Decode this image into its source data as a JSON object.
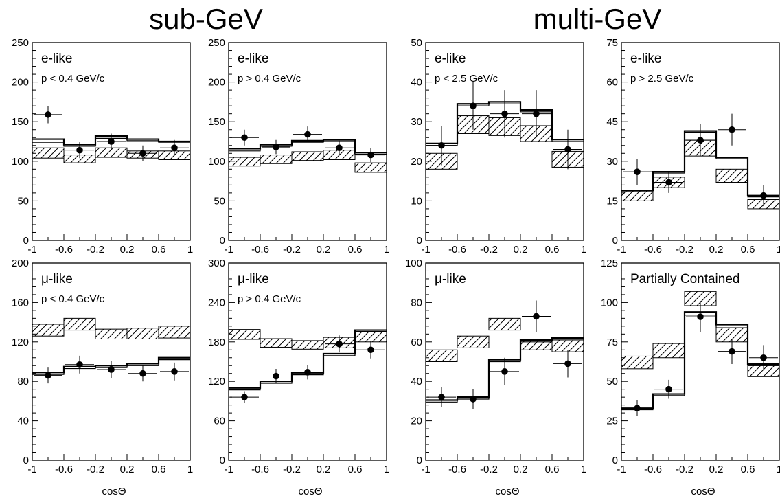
{
  "headers": {
    "left": "sub-GeV",
    "right": "multi-GeV"
  },
  "colors": {
    "ink": "#000000",
    "background": "#ffffff"
  },
  "chart_data": [
    {
      "type": "histogram",
      "panel": "sub-GeV e-like",
      "title": "e-like",
      "subtitle": "p < 0.4 GeV/c",
      "xlabel": "",
      "xlim": [
        -1,
        1
      ],
      "xticks": [
        "-1",
        "-0.6",
        "-0.2",
        "0.2",
        "0.6",
        "1"
      ],
      "ylim": [
        0,
        250
      ],
      "yticks": [
        "0",
        "50",
        "100",
        "150",
        "200",
        "250"
      ],
      "bin_edges": [
        -1,
        -0.6,
        -0.2,
        0.2,
        0.6,
        1
      ],
      "series": [
        {
          "kind": "prediction-line",
          "values": [
            128,
            121,
            132,
            128,
            125
          ]
        },
        {
          "kind": "prediction-line",
          "values": [
            124,
            119,
            129,
            126,
            124
          ]
        },
        {
          "kind": "data-points",
          "values": [
            159,
            114,
            125,
            110,
            117
          ],
          "errors": [
            11,
            10,
            10,
            10,
            10
          ]
        },
        {
          "kind": "hatched-band",
          "low": [
            104,
            98,
            105,
            104,
            102
          ],
          "high": [
            117,
            108,
            117,
            113,
            113
          ]
        }
      ]
    },
    {
      "type": "histogram",
      "panel": "sub-GeV e-like",
      "title": "e-like",
      "subtitle": "p > 0.4 GeV/c",
      "xlabel": "",
      "xlim": [
        -1,
        1
      ],
      "xticks": [
        "-1",
        "-0.6",
        "-0.2",
        "0.2",
        "0.6",
        "1"
      ],
      "ylim": [
        0,
        250
      ],
      "yticks": [
        "0",
        "50",
        "100",
        "150",
        "200",
        "250"
      ],
      "bin_edges": [
        -1,
        -0.6,
        -0.2,
        0.2,
        0.6,
        1
      ],
      "series": [
        {
          "kind": "prediction-line",
          "values": [
            116,
            121,
            126,
            127,
            111
          ]
        },
        {
          "kind": "prediction-line",
          "values": [
            113,
            119,
            124,
            125,
            109
          ]
        },
        {
          "kind": "data-points",
          "values": [
            130,
            118,
            134,
            117,
            108
          ],
          "errors": [
            10,
            9,
            10,
            9,
            9
          ]
        },
        {
          "kind": "hatched-band",
          "low": [
            94,
            97,
            101,
            102,
            86
          ],
          "high": [
            105,
            108,
            112,
            114,
            98
          ]
        }
      ]
    },
    {
      "type": "histogram",
      "panel": "multi-GeV e-like",
      "title": "e-like",
      "subtitle": "p < 2.5 GeV/c",
      "xlabel": "",
      "xlim": [
        -1,
        1
      ],
      "xticks": [
        "-1",
        "-0.6",
        "-0.2",
        "0.2",
        "0.6",
        "1"
      ],
      "ylim": [
        0,
        50
      ],
      "yticks": [
        "0",
        "10",
        "20",
        "30",
        "40",
        "50"
      ],
      "bin_edges": [
        -1,
        -0.6,
        -0.2,
        0.2,
        0.6,
        1
      ],
      "series": [
        {
          "kind": "prediction-line",
          "values": [
            24.5,
            34.5,
            35,
            33,
            25.5
          ]
        },
        {
          "kind": "prediction-line",
          "values": [
            24,
            34,
            34.5,
            32.5,
            25
          ]
        },
        {
          "kind": "data-points",
          "values": [
            24,
            34,
            32,
            32,
            23
          ],
          "errors": [
            5,
            6,
            6,
            6,
            5
          ]
        },
        {
          "kind": "hatched-band",
          "low": [
            18,
            27,
            26.5,
            25,
            18.5
          ],
          "high": [
            22,
            31.5,
            31,
            29,
            22.5
          ]
        }
      ]
    },
    {
      "type": "histogram",
      "panel": "multi-GeV e-like",
      "title": "e-like",
      "subtitle": "p > 2.5 GeV/c",
      "xlabel": "",
      "xlim": [
        -1,
        1
      ],
      "xticks": [
        "-1",
        "-0.6",
        "-0.2",
        "0.2",
        "0.6",
        "1"
      ],
      "ylim": [
        0,
        75
      ],
      "yticks": [
        "0",
        "15",
        "30",
        "45",
        "60",
        "75"
      ],
      "bin_edges": [
        -1,
        -0.6,
        -0.2,
        0.2,
        0.6,
        1
      ],
      "series": [
        {
          "kind": "prediction-line",
          "values": [
            19,
            26,
            41.5,
            31.5,
            17
          ]
        },
        {
          "kind": "prediction-line",
          "values": [
            18.5,
            25.5,
            41,
            31,
            16.5
          ]
        },
        {
          "kind": "data-points",
          "values": [
            26,
            22,
            38,
            42,
            17
          ],
          "errors": [
            5,
            4,
            6,
            6,
            4
          ]
        },
        {
          "kind": "hatched-band",
          "low": [
            15,
            20,
            32,
            22,
            12
          ],
          "high": [
            19,
            24,
            38,
            27,
            15.5
          ]
        }
      ]
    },
    {
      "type": "histogram",
      "panel": "sub-GeV mu-like",
      "title": "μ-like",
      "subtitle": "p < 0.4 GeV/c",
      "xlabel": "cosΘ",
      "xlim": [
        -1,
        1
      ],
      "xticks": [
        "-1",
        "-0.6",
        "-0.2",
        "0.2",
        "0.6",
        "1"
      ],
      "ylim": [
        0,
        200
      ],
      "yticks": [
        "0",
        "40",
        "80",
        "120",
        "160",
        "200"
      ],
      "bin_edges": [
        -1,
        -0.6,
        -0.2,
        0.2,
        0.6,
        1
      ],
      "series": [
        {
          "kind": "prediction-line",
          "values": [
            89,
            95,
            96,
            98,
            104
          ]
        },
        {
          "kind": "prediction-line",
          "values": [
            87,
            93,
            94,
            96,
            102
          ]
        },
        {
          "kind": "data-points",
          "values": [
            86,
            97,
            92,
            88,
            90
          ],
          "errors": [
            8,
            9,
            9,
            8,
            9
          ]
        },
        {
          "kind": "hatched-band",
          "low": [
            126,
            132,
            123,
            123,
            124
          ],
          "high": [
            138,
            144,
            133,
            134,
            136
          ]
        }
      ]
    },
    {
      "type": "histogram",
      "panel": "sub-GeV mu-like",
      "title": "μ-like",
      "subtitle": "p > 0.4 GeV/c",
      "xlabel": "cosΘ",
      "xlim": [
        -1,
        1
      ],
      "xticks": [
        "-1",
        "-0.6",
        "-0.2",
        "0.2",
        "0.6",
        "1"
      ],
      "ylim": [
        0,
        300
      ],
      "yticks": [
        "0",
        "60",
        "120",
        "180",
        "240",
        "300"
      ],
      "bin_edges": [
        -1,
        -0.6,
        -0.2,
        0.2,
        0.6,
        1
      ],
      "series": [
        {
          "kind": "prediction-line",
          "values": [
            110,
            120,
            133,
            162,
            198
          ]
        },
        {
          "kind": "prediction-line",
          "values": [
            107,
            117,
            130,
            159,
            195
          ]
        },
        {
          "kind": "data-points",
          "values": [
            96,
            128,
            134,
            177,
            168
          ],
          "errors": [
            9,
            11,
            11,
            13,
            13
          ]
        },
        {
          "kind": "hatched-band",
          "low": [
            184,
            172,
            169,
            171,
            180
          ],
          "high": [
            199,
            185,
            182,
            187,
            196
          ]
        }
      ]
    },
    {
      "type": "histogram",
      "panel": "multi-GeV mu-like",
      "title": "μ-like",
      "subtitle": "",
      "xlabel": "cosΘ",
      "xlim": [
        -1,
        1
      ],
      "xticks": [
        "-1",
        "-0.6",
        "-0.2",
        "0.2",
        "0.6",
        "1"
      ],
      "ylim": [
        0,
        100
      ],
      "yticks": [
        "0",
        "20",
        "40",
        "60",
        "80",
        "100"
      ],
      "bin_edges": [
        -1,
        -0.6,
        -0.2,
        0.2,
        0.6,
        1
      ],
      "series": [
        {
          "kind": "prediction-line",
          "values": [
            30.5,
            32,
            51,
            61,
            62
          ]
        },
        {
          "kind": "prediction-line",
          "values": [
            29.5,
            31,
            50,
            60,
            61
          ]
        },
        {
          "kind": "data-points",
          "values": [
            32,
            31,
            45,
            73,
            49
          ],
          "errors": [
            5,
            5,
            7,
            8,
            7
          ]
        },
        {
          "kind": "hatched-band",
          "low": [
            50,
            57,
            66,
            56,
            55
          ],
          "high": [
            56,
            63,
            72,
            61,
            61
          ]
        }
      ]
    },
    {
      "type": "histogram",
      "panel": "partially contained",
      "title": "Partially Contained",
      "subtitle": "",
      "xlabel": "cosΘ",
      "xlim": [
        -1,
        1
      ],
      "xticks": [
        "-1",
        "-0.6",
        "-0.2",
        "0.2",
        "0.6",
        "1"
      ],
      "ylim": [
        0,
        125
      ],
      "yticks": [
        "0",
        "25",
        "50",
        "75",
        "100",
        "125"
      ],
      "bin_edges": [
        -1,
        -0.6,
        -0.2,
        0.2,
        0.6,
        1
      ],
      "series": [
        {
          "kind": "prediction-line",
          "values": [
            33,
            42,
            94,
            86,
            61
          ]
        },
        {
          "kind": "prediction-line",
          "values": [
            32,
            41,
            92,
            84,
            60
          ]
        },
        {
          "kind": "data-points",
          "values": [
            33,
            45,
            91,
            69,
            65
          ],
          "errors": [
            5,
            6,
            10,
            8,
            8
          ]
        },
        {
          "kind": "hatched-band",
          "low": [
            58,
            65,
            98,
            75,
            53
          ],
          "high": [
            66,
            74,
            107,
            84,
            60
          ]
        }
      ]
    }
  ]
}
